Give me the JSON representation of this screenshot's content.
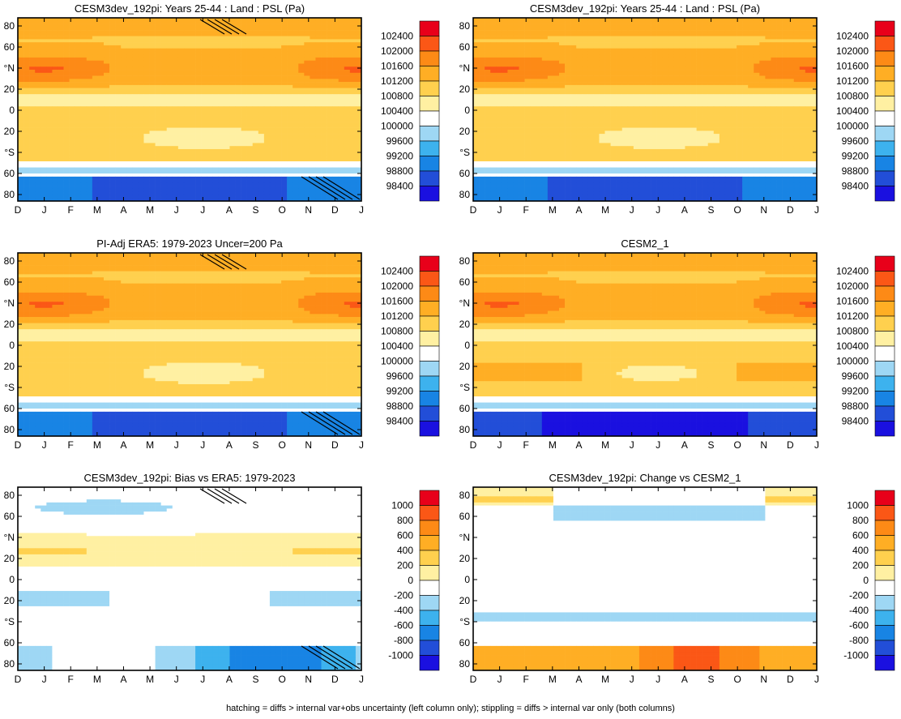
{
  "figure": {
    "footer_note": "hatching = diffs > internal var+obs uncertainty (left column only); stippling = diffs > internal var only (both columns)"
  },
  "chart_data": [
    {
      "type": "heatmap",
      "title": "CESM3dev_192pi: Years 25-44 : Land : PSL (Pa)",
      "panel": "row1-left",
      "variable": "sea level pressure",
      "x_ticks": [
        "D",
        "J",
        "F",
        "M",
        "A",
        "M",
        "J",
        "J",
        "A",
        "S",
        "O",
        "N",
        "D",
        "J"
      ],
      "y_ticks": [
        "80",
        "60",
        "°N",
        "20",
        "0",
        "20",
        "°S",
        "60",
        "80"
      ],
      "colorbar_levels": [
        "102400",
        "102000",
        "101600",
        "101200",
        "100800",
        "100400",
        "100000",
        "99600",
        "99200",
        "98800",
        "98400"
      ],
      "range": [
        98200,
        102600
      ],
      "stippling": true,
      "hatching": true,
      "pattern": "absolute"
    },
    {
      "type": "heatmap",
      "title": "CESM3dev_192pi: Years 25-44 : Land : PSL (Pa)",
      "panel": "row1-right",
      "variable": "sea level pressure",
      "x_ticks": [
        "D",
        "J",
        "F",
        "M",
        "A",
        "M",
        "J",
        "J",
        "A",
        "S",
        "O",
        "N",
        "D",
        "J"
      ],
      "y_ticks": [
        "80",
        "60",
        "°N",
        "20",
        "0",
        "20",
        "°S",
        "60",
        "80"
      ],
      "colorbar_levels": [
        "102400",
        "102000",
        "101600",
        "101200",
        "100800",
        "100400",
        "100000",
        "99600",
        "99200",
        "98800",
        "98400"
      ],
      "range": [
        98200,
        102600
      ],
      "stippling": true,
      "hatching": false,
      "pattern": "absolute"
    },
    {
      "type": "heatmap",
      "title": "PI-Adj ERA5: 1979-2023 Uncer=200 Pa",
      "panel": "row2-left",
      "variable": "sea level pressure",
      "x_ticks": [
        "D",
        "J",
        "F",
        "M",
        "A",
        "M",
        "J",
        "J",
        "A",
        "S",
        "O",
        "N",
        "D",
        "J"
      ],
      "y_ticks": [
        "80",
        "60",
        "°N",
        "20",
        "0",
        "20",
        "°S",
        "60",
        "80"
      ],
      "colorbar_levels": [
        "102400",
        "102000",
        "101600",
        "101200",
        "100800",
        "100400",
        "100000",
        "99600",
        "99200",
        "98800",
        "98400"
      ],
      "range": [
        98200,
        102600
      ],
      "stippling": true,
      "hatching": true,
      "pattern": "absolute"
    },
    {
      "type": "heatmap",
      "title": "CESM2_1",
      "panel": "row2-right",
      "variable": "sea level pressure",
      "x_ticks": [
        "D",
        "J",
        "F",
        "M",
        "A",
        "M",
        "J",
        "J",
        "A",
        "S",
        "O",
        "N",
        "D",
        "J"
      ],
      "y_ticks": [
        "80",
        "60",
        "°N",
        "20",
        "0",
        "20",
        "°S",
        "60",
        "80"
      ],
      "colorbar_levels": [
        "102400",
        "102000",
        "101600",
        "101200",
        "100800",
        "100400",
        "100000",
        "99600",
        "99200",
        "98800",
        "98400"
      ],
      "range": [
        98200,
        102600
      ],
      "stippling": true,
      "hatching": false,
      "pattern": "absolute"
    },
    {
      "type": "heatmap",
      "title": "CESM3dev_192pi: Bias vs ERA5: 1979-2023",
      "panel": "row3-left",
      "variable": "sea level pressure difference",
      "x_ticks": [
        "D",
        "J",
        "F",
        "M",
        "A",
        "M",
        "J",
        "J",
        "A",
        "S",
        "O",
        "N",
        "D",
        "J"
      ],
      "y_ticks": [
        "80",
        "60",
        "°N",
        "20",
        "0",
        "20",
        "°S",
        "60",
        "80"
      ],
      "colorbar_levels": [
        "1000",
        "800",
        "600",
        "400",
        "200",
        "0",
        "-200",
        "-400",
        "-600",
        "-800",
        "-1000"
      ],
      "range": [
        -1100,
        1100
      ],
      "stippling": true,
      "hatching": true,
      "pattern": "bias"
    },
    {
      "type": "heatmap",
      "title": "CESM3dev_192pi: Change vs CESM2_1",
      "panel": "row3-right",
      "variable": "sea level pressure difference",
      "x_ticks": [
        "D",
        "J",
        "F",
        "M",
        "A",
        "M",
        "J",
        "J",
        "A",
        "S",
        "O",
        "N",
        "D",
        "J"
      ],
      "y_ticks": [
        "80",
        "60",
        "°N",
        "20",
        "0",
        "20",
        "°S",
        "60",
        "80"
      ],
      "colorbar_levels": [
        "1000",
        "800",
        "600",
        "400",
        "200",
        "0",
        "-200",
        "-400",
        "-600",
        "-800",
        "-1000"
      ],
      "range": [
        -1100,
        1100
      ],
      "stippling": true,
      "hatching": false,
      "pattern": "change"
    }
  ]
}
